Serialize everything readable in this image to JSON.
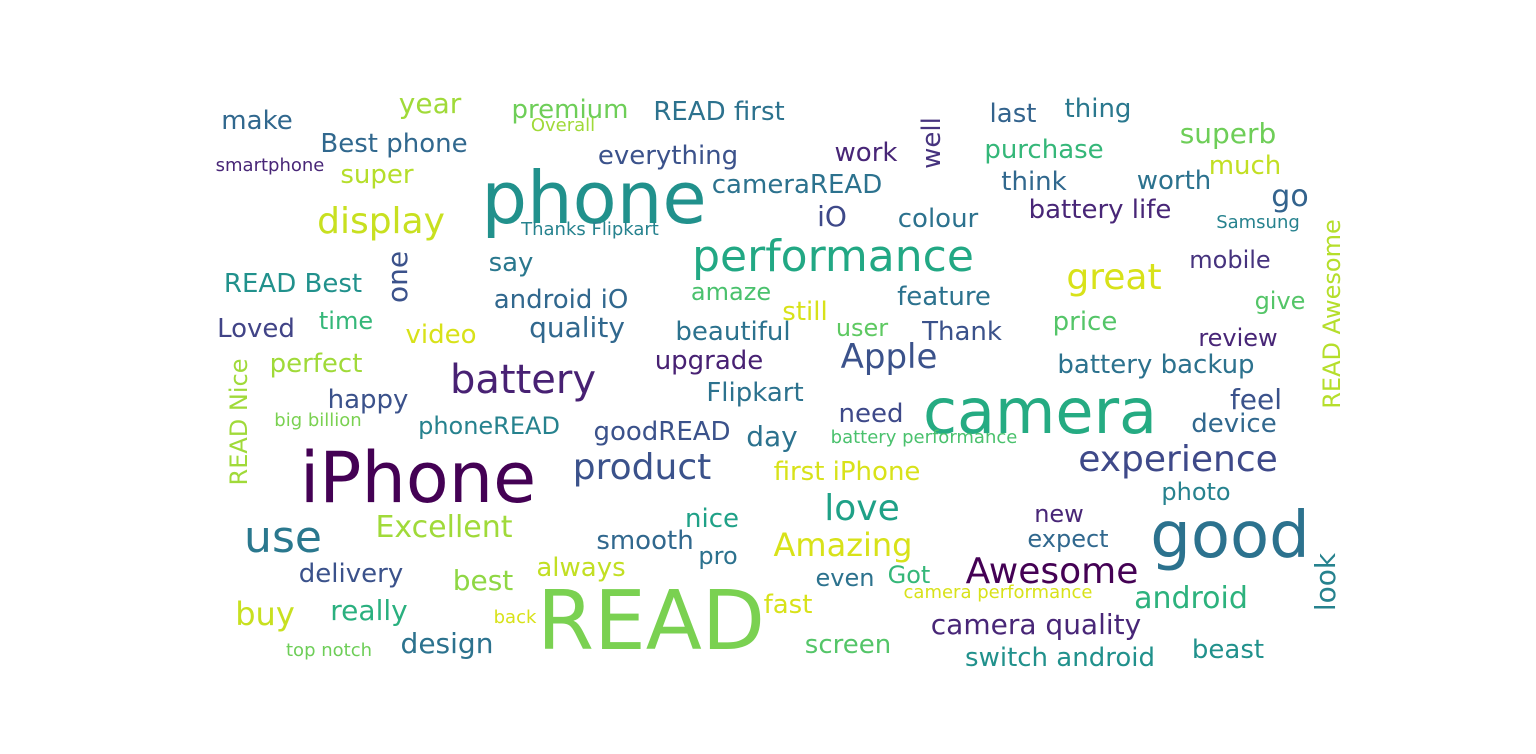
{
  "palette": {
    "dark_purple": "#440154",
    "indigo": "#3b528b",
    "teal_blue": "#2c728e",
    "teal": "#21918c",
    "green": "#28ae80",
    "light_green": "#5ec962",
    "yellow_green": "#addc30",
    "yellow": "#d8e219"
  },
  "words": [
    {
      "text": "READ",
      "color": "#7ad151"
    },
    {
      "text": "phone",
      "color": "#21918c"
    },
    {
      "text": "iPhone",
      "color": "#440154"
    },
    {
      "text": "camera",
      "color": "#25ab82"
    },
    {
      "text": "good",
      "color": "#2c728e"
    },
    {
      "text": "performance",
      "color": "#22a884"
    },
    {
      "text": "battery",
      "color": "#482173"
    },
    {
      "text": "use",
      "color": "#2a788e"
    },
    {
      "text": "product",
      "color": "#3b528b"
    },
    {
      "text": "experience",
      "color": "#3e4989"
    },
    {
      "text": "display",
      "color": "#c8e020"
    },
    {
      "text": "Awesome",
      "color": "#440154"
    },
    {
      "text": "love",
      "color": "#1fa187"
    },
    {
      "text": "Apple",
      "color": "#3b528b"
    },
    {
      "text": "great",
      "color": "#d8e219"
    },
    {
      "text": "Amazing",
      "color": "#d8e219"
    },
    {
      "text": "Excellent",
      "color": "#a0da39"
    },
    {
      "text": "buy",
      "color": "#c8e020"
    },
    {
      "text": "android",
      "color": "#2db27d"
    },
    {
      "text": "camera quality",
      "color": "#482677"
    },
    {
      "text": "quality",
      "color": "#31688e"
    },
    {
      "text": "best",
      "color": "#8fd744"
    },
    {
      "text": "really",
      "color": "#2ab07f"
    },
    {
      "text": "design",
      "color": "#2c728e"
    },
    {
      "text": "one",
      "color": "#3b528b"
    },
    {
      "text": "nice",
      "color": "#1fa187"
    },
    {
      "text": "day",
      "color": "#2c728e"
    },
    {
      "text": "look",
      "color": "#26828e"
    },
    {
      "text": "READ Awesome",
      "color": "#b5de2b"
    },
    {
      "text": "READ Nice",
      "color": "#a0da39"
    },
    {
      "text": "well",
      "color": "#46337e"
    },
    {
      "text": "go",
      "color": "#33638d"
    },
    {
      "text": "iO",
      "color": "#3e4989"
    },
    {
      "text": "everything",
      "color": "#3b528b"
    },
    {
      "text": "work",
      "color": "#482677"
    },
    {
      "text": "cameraREAD",
      "color": "#2c728e"
    },
    {
      "text": "superb",
      "color": "#6ece58"
    },
    {
      "text": "worth",
      "color": "#2c728e"
    },
    {
      "text": "think",
      "color": "#31688e"
    },
    {
      "text": "battery life",
      "color": "#482677"
    },
    {
      "text": "colour",
      "color": "#2c728e"
    },
    {
      "text": "purchase",
      "color": "#35b779"
    },
    {
      "text": "much",
      "color": "#c2df23"
    },
    {
      "text": "last",
      "color": "#33638d"
    },
    {
      "text": "thing",
      "color": "#2a788e"
    },
    {
      "text": "year",
      "color": "#a0da39"
    },
    {
      "text": "premium",
      "color": "#6ece58"
    },
    {
      "text": "READ first",
      "color": "#2c728e"
    },
    {
      "text": "Overall",
      "color": "#a0da39"
    },
    {
      "text": "make",
      "color": "#31688e"
    },
    {
      "text": "Best phone",
      "color": "#31688e"
    },
    {
      "text": "smartphone",
      "color": "#482677"
    },
    {
      "text": "super",
      "color": "#b5de2b"
    },
    {
      "text": "Thanks Flipkart",
      "color": "#26828e"
    },
    {
      "text": "Samsung",
      "color": "#26828e"
    },
    {
      "text": "say",
      "color": "#2a788e"
    },
    {
      "text": "READ Best",
      "color": "#21918c"
    },
    {
      "text": "android iO",
      "color": "#31688e"
    },
    {
      "text": "amaze",
      "color": "#4ac16d"
    },
    {
      "text": "feature",
      "color": "#2c728e"
    },
    {
      "text": "mobile",
      "color": "#46337e"
    },
    {
      "text": "still",
      "color": "#d8e219"
    },
    {
      "text": "user",
      "color": "#5ec962"
    },
    {
      "text": "give",
      "color": "#54c568"
    },
    {
      "text": "price",
      "color": "#54c568"
    },
    {
      "text": "review",
      "color": "#482677"
    },
    {
      "text": "time",
      "color": "#35b779"
    },
    {
      "text": "Loved",
      "color": "#414487"
    },
    {
      "text": "video",
      "color": "#d8e219"
    },
    {
      "text": "beautiful",
      "color": "#2c728e"
    },
    {
      "text": "Thank",
      "color": "#3b528b"
    },
    {
      "text": "upgrade",
      "color": "#482173"
    },
    {
      "text": "battery backup",
      "color": "#2c728e"
    },
    {
      "text": "perfect",
      "color": "#a0da39"
    },
    {
      "text": "happy",
      "color": "#3b528b"
    },
    {
      "text": "Flipkart",
      "color": "#2c728e"
    },
    {
      "text": "feel",
      "color": "#3b528b"
    },
    {
      "text": "need",
      "color": "#3e4989"
    },
    {
      "text": "device",
      "color": "#31688e"
    },
    {
      "text": "big billion",
      "color": "#7ad151"
    },
    {
      "text": "phoneREAD",
      "color": "#26828e"
    },
    {
      "text": "goodREAD",
      "color": "#3b528b"
    },
    {
      "text": "battery performance",
      "color": "#4ac16d"
    },
    {
      "text": "first iPhone",
      "color": "#d8e219"
    },
    {
      "text": "photo",
      "color": "#26828e"
    },
    {
      "text": "new",
      "color": "#482677"
    },
    {
      "text": "expect",
      "color": "#31688e"
    },
    {
      "text": "smooth",
      "color": "#31688e"
    },
    {
      "text": "pro",
      "color": "#2c728e"
    },
    {
      "text": "delivery",
      "color": "#3b528b"
    },
    {
      "text": "always",
      "color": "#c2df23"
    },
    {
      "text": "even",
      "color": "#2c728e"
    },
    {
      "text": "Got",
      "color": "#35b779"
    },
    {
      "text": "camera performance",
      "color": "#d8e219"
    },
    {
      "text": "fast",
      "color": "#d8e219"
    },
    {
      "text": "back",
      "color": "#d8e219"
    },
    {
      "text": "top notch",
      "color": "#6ece58"
    },
    {
      "text": "screen",
      "color": "#54c568"
    },
    {
      "text": "switch android",
      "color": "#21918c"
    },
    {
      "text": "beast",
      "color": "#21918c"
    }
  ]
}
